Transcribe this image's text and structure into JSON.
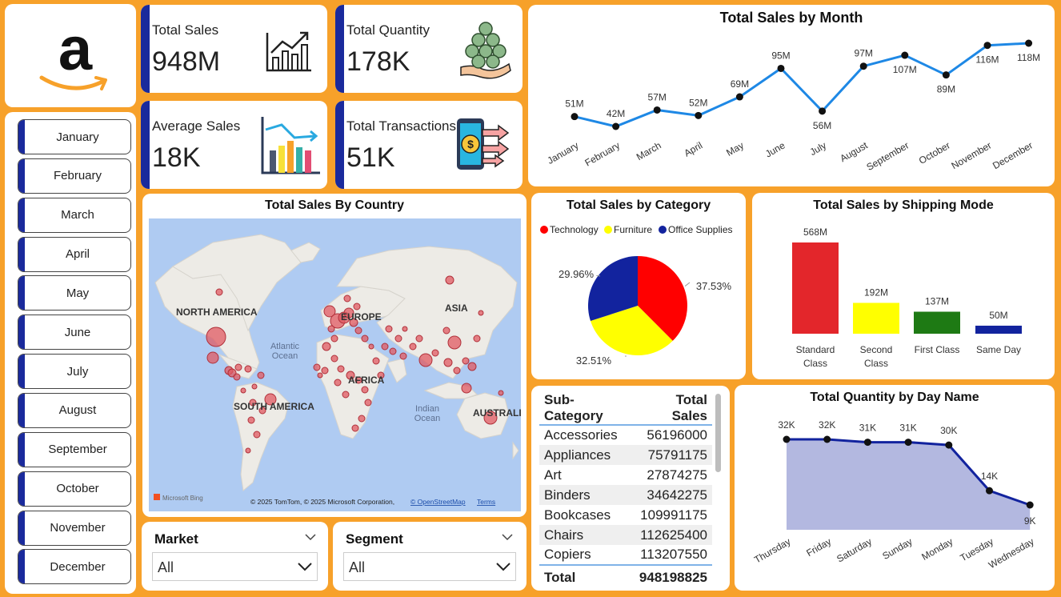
{
  "logo": {
    "name": "amazon-logo",
    "mark": "a"
  },
  "kpis": {
    "total_sales": {
      "label": "Total Sales",
      "value": "948M",
      "icon": "growth-chart-icon"
    },
    "total_quantity": {
      "label": "Total Quantity",
      "value": "178K",
      "icon": "coins-hand-icon"
    },
    "average_sales": {
      "label": "Average Sales",
      "value": "18K",
      "icon": "bar-trend-icon"
    },
    "total_transactions": {
      "label": "Total Transactions",
      "value": "51K",
      "icon": "phone-payment-icon"
    }
  },
  "months": [
    "January",
    "February",
    "March",
    "April",
    "May",
    "June",
    "July",
    "August",
    "September",
    "October",
    "November",
    "December"
  ],
  "map": {
    "title": "Total Sales By Country",
    "labels": {
      "north_america": "NORTH AMERICA",
      "south_america": "SOUTH AMERICA",
      "europe": "EUROPE",
      "africa": "AFRICA",
      "asia": "ASIA",
      "australia": "AUSTRALIA",
      "atlantic": "Atlantic",
      "atlantic2": "Ocean",
      "indian": "Indian",
      "indian2": "Ocean"
    },
    "brand": "Microsoft Bing",
    "credit": "© 2025 TomTom, © 2025 Microsoft Corporation,",
    "osm": "© OpenStreetMap",
    "terms": "Terms"
  },
  "filters": {
    "market": {
      "label": "Market",
      "value": "All"
    },
    "segment": {
      "label": "Segment",
      "value": "All"
    }
  },
  "colors": {
    "accent": "#1A2A9C",
    "background": "#F7A12A",
    "line": "#1E88E5",
    "technology": "#FF0000",
    "furniture": "#FFFF00",
    "office": "#12239E",
    "standard": "#E3262B",
    "second": "#FFFF00",
    "first": "#1E7A14",
    "sameday": "#12239E",
    "area": "#B3B8E0"
  },
  "table": {
    "headers": [
      "Sub-Category",
      "Total Sales"
    ],
    "rows": [
      [
        "Accessories",
        "56196000"
      ],
      [
        "Appliances",
        "75791175"
      ],
      [
        "Art",
        "27874275"
      ],
      [
        "Binders",
        "34642275"
      ],
      [
        "Bookcases",
        "109991175"
      ],
      [
        "Chairs",
        "112625400"
      ],
      [
        "Copiers",
        "113207550"
      ]
    ],
    "total_label": "Total",
    "total_value": "948198825"
  },
  "chart_data": [
    {
      "type": "line",
      "title": "Total Sales by Month",
      "categories": [
        "January",
        "February",
        "March",
        "April",
        "May",
        "June",
        "July",
        "August",
        "September",
        "October",
        "November",
        "December"
      ],
      "values": [
        51,
        42,
        57,
        52,
        69,
        95,
        56,
        97,
        107,
        89,
        116,
        118
      ],
      "labels": [
        "51M",
        "42M",
        "57M",
        "52M",
        "69M",
        "95M",
        "56M",
        "97M",
        "107M",
        "89M",
        "116M",
        "118M"
      ],
      "label_pos": [
        "above",
        "above",
        "above",
        "above",
        "above",
        "above",
        "below",
        "above",
        "below",
        "below",
        "below",
        "below"
      ]
    },
    {
      "type": "pie",
      "title": "Total Sales by Category",
      "categories": [
        "Technology",
        "Furniture",
        "Office Supplies"
      ],
      "values": [
        37.53,
        32.51,
        29.96
      ],
      "labels": [
        "37.53%",
        "32.51%",
        "29.96%"
      ],
      "legend": "top"
    },
    {
      "type": "bar",
      "title": "Total Sales by Shipping Mode",
      "categories": [
        [
          "Standard",
          "Class"
        ],
        [
          "Second",
          "Class"
        ],
        [
          "First Class"
        ],
        [
          "Same Day"
        ]
      ],
      "values": [
        568,
        192,
        137,
        50
      ],
      "labels": [
        "568M",
        "192M",
        "137M",
        "50M"
      ]
    },
    {
      "type": "area",
      "title": "Total Quantity by Day Name",
      "categories": [
        "Thursday",
        "Friday",
        "Saturday",
        "Sunday",
        "Monday",
        "Tuesday",
        "Wednesday"
      ],
      "values": [
        32,
        32,
        31,
        31,
        30,
        14,
        9
      ],
      "labels": [
        "32K",
        "32K",
        "31K",
        "31K",
        "30K",
        "14K",
        "9K"
      ]
    }
  ]
}
